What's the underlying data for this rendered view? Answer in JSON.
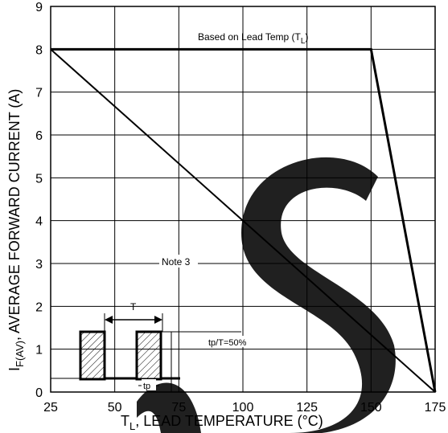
{
  "chart_data": {
    "type": "line",
    "xlabel": {
      "main": "T",
      "sub": "L",
      "rest": ", LEAD TEMPERATURE (°C)"
    },
    "ylabel": {
      "main": "I",
      "sub": "F(AV)",
      "rest": ", AVERAGE FORWARD CURRENT (A)"
    },
    "xlim": [
      25,
      175
    ],
    "ylim": [
      0,
      9
    ],
    "x_ticks": [
      25,
      50,
      75,
      100,
      125,
      150,
      175
    ],
    "y_ticks": [
      0,
      1,
      2,
      3,
      4,
      5,
      6,
      7,
      8,
      9
    ],
    "x_gridlines": [
      25,
      50,
      75,
      100,
      125,
      150,
      175
    ],
    "y_gridlines": [
      0,
      1,
      2,
      3,
      4,
      5,
      6,
      7,
      8,
      9
    ],
    "grid": true,
    "series": [
      {
        "name": "Based on Lead Temp (TL)",
        "x": [
          25,
          150,
          175
        ],
        "y": [
          8,
          8,
          0
        ]
      },
      {
        "name": "Note 3",
        "x": [
          25,
          175
        ],
        "y": [
          8,
          0
        ]
      }
    ],
    "annotations": {
      "lead_temp_label": {
        "text": "Based on Lead Temp (T",
        "sub": "L",
        "close": ")"
      },
      "note_label": "Note 3",
      "inset_period_label": "T",
      "inset_pulse_label": "tp",
      "inset_duty_label": "tp/T=50%"
    },
    "colors": {
      "axis": "#000000",
      "grid": "#000000",
      "curve": "#000000",
      "watermark": "#000000"
    }
  }
}
